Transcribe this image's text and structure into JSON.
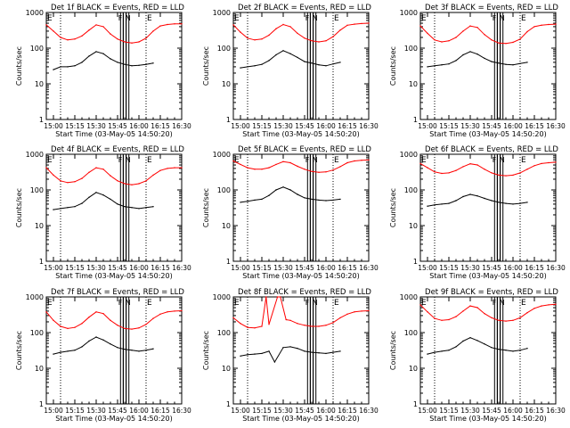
{
  "colors": {
    "events": "#000000",
    "lld": "#ff0000",
    "background": "#ffffff",
    "axes": "#000000"
  },
  "shared": {
    "ylabel": "Counts/sec",
    "xlabel": "Start Time (03-May-05 14:50:20)",
    "x_ticks": [
      "15:00",
      "15:15",
      "15:30",
      "15:45",
      "16:00",
      "16:15",
      "16:30"
    ],
    "y_ticks": [
      "1",
      "10",
      "100",
      "1000"
    ],
    "marker_e": "E",
    "marker_f": "F",
    "marker_n": "N"
  },
  "chart_data": [
    {
      "type": "line",
      "title": "Det 1f BLACK = Events, RED = LLD",
      "xlim": [
        "14:55",
        "16:30"
      ],
      "ylim": [
        1,
        1000
      ],
      "yscale": "log",
      "grid": false,
      "dotted_lines": [
        "15:05",
        "16:05"
      ],
      "flags": [
        "15:48",
        "15:50",
        "15:52"
      ],
      "series": [
        {
          "name": "Events",
          "x": [
            "15:00",
            "15:05",
            "15:10",
            "15:15",
            "15:20",
            "15:25",
            "15:30",
            "15:35",
            "15:40",
            "15:45",
            "15:50",
            "15:55",
            "16:00",
            "16:05",
            "16:10"
          ],
          "y": [
            25,
            30,
            30,
            32,
            40,
            60,
            80,
            70,
            50,
            40,
            35,
            32,
            33,
            35,
            38
          ]
        },
        {
          "name": "LLD",
          "x": [
            "14:55",
            "15:00",
            "15:05",
            "15:10",
            "15:15",
            "15:20",
            "15:25",
            "15:30",
            "15:35",
            "15:40",
            "15:45",
            "15:50",
            "15:55",
            "16:00",
            "16:05",
            "16:10",
            "16:15",
            "16:20",
            "16:25",
            "16:30"
          ],
          "y": [
            450,
            300,
            200,
            170,
            180,
            220,
            320,
            450,
            400,
            250,
            180,
            150,
            140,
            150,
            190,
            300,
            420,
            460,
            480,
            480
          ]
        }
      ]
    },
    {
      "type": "line",
      "title": "Det 2f BLACK = Events, RED = LLD",
      "xlim": [
        "14:55",
        "16:30"
      ],
      "ylim": [
        1,
        1000
      ],
      "yscale": "log",
      "grid": false,
      "dotted_lines": [
        "15:05",
        "16:05"
      ],
      "flags": [
        "15:48",
        "15:50",
        "15:52"
      ],
      "series": [
        {
          "name": "Events",
          "x": [
            "15:00",
            "15:05",
            "15:10",
            "15:15",
            "15:20",
            "15:25",
            "15:30",
            "15:35",
            "15:40",
            "15:45",
            "15:50",
            "15:55",
            "16:00",
            "16:05",
            "16:10"
          ],
          "y": [
            28,
            30,
            32,
            35,
            45,
            65,
            85,
            70,
            55,
            42,
            38,
            34,
            32,
            36,
            40
          ]
        },
        {
          "name": "LLD",
          "x": [
            "14:55",
            "15:00",
            "15:05",
            "15:10",
            "15:15",
            "15:20",
            "15:25",
            "15:30",
            "15:35",
            "15:40",
            "15:45",
            "15:50",
            "15:55",
            "16:00",
            "16:05",
            "16:10",
            "16:15",
            "16:20",
            "16:25",
            "16:30"
          ],
          "y": [
            450,
            280,
            190,
            170,
            180,
            230,
            350,
            460,
            400,
            260,
            190,
            160,
            150,
            160,
            210,
            320,
            440,
            470,
            490,
            500
          ]
        }
      ]
    },
    {
      "type": "line",
      "title": "Det 3f BLACK = Events, RED = LLD",
      "xlim": [
        "14:55",
        "16:30"
      ],
      "ylim": [
        1,
        1000
      ],
      "yscale": "log",
      "grid": false,
      "dotted_lines": [
        "15:05",
        "16:05"
      ],
      "flags": [
        "15:48",
        "15:50",
        "15:52"
      ],
      "series": [
        {
          "name": "Events",
          "x": [
            "15:00",
            "15:05",
            "15:10",
            "15:15",
            "15:20",
            "15:25",
            "15:30",
            "15:35",
            "15:40",
            "15:45",
            "15:50",
            "15:55",
            "16:00",
            "16:05",
            "16:10"
          ],
          "y": [
            30,
            32,
            34,
            36,
            45,
            65,
            80,
            68,
            52,
            42,
            38,
            35,
            34,
            37,
            40
          ]
        },
        {
          "name": "LLD",
          "x": [
            "14:55",
            "15:00",
            "15:05",
            "15:10",
            "15:15",
            "15:20",
            "15:25",
            "15:30",
            "15:35",
            "15:40",
            "15:45",
            "15:50",
            "15:55",
            "16:00",
            "16:05",
            "16:10",
            "16:15",
            "16:20",
            "16:25",
            "16:30"
          ],
          "y": [
            420,
            260,
            170,
            150,
            160,
            200,
            300,
            420,
            380,
            240,
            170,
            140,
            135,
            145,
            180,
            290,
            400,
            440,
            460,
            470
          ]
        }
      ]
    },
    {
      "type": "line",
      "title": "Det 4f BLACK = Events, RED = LLD",
      "xlim": [
        "14:55",
        "16:30"
      ],
      "ylim": [
        1,
        1000
      ],
      "yscale": "log",
      "grid": false,
      "dotted_lines": [
        "15:05",
        "16:05"
      ],
      "flags": [
        "15:48",
        "15:50",
        "15:52"
      ],
      "series": [
        {
          "name": "Events",
          "x": [
            "15:00",
            "15:05",
            "15:10",
            "15:15",
            "15:20",
            "15:25",
            "15:30",
            "15:35",
            "15:40",
            "15:45",
            "15:50",
            "15:55",
            "16:00",
            "16:05",
            "16:10"
          ],
          "y": [
            28,
            30,
            32,
            34,
            42,
            62,
            85,
            72,
            55,
            40,
            34,
            32,
            30,
            32,
            34
          ]
        },
        {
          "name": "LLD",
          "x": [
            "14:55",
            "15:00",
            "15:05",
            "15:10",
            "15:15",
            "15:20",
            "15:25",
            "15:30",
            "15:35",
            "15:40",
            "15:45",
            "15:50",
            "15:55",
            "16:00",
            "16:05",
            "16:10",
            "16:15",
            "16:20",
            "16:25",
            "16:30"
          ],
          "y": [
            420,
            260,
            180,
            160,
            170,
            210,
            310,
            420,
            380,
            250,
            180,
            150,
            140,
            150,
            180,
            260,
            350,
            400,
            420,
            420
          ]
        }
      ]
    },
    {
      "type": "line",
      "title": "Det 5f BLACK = Events, RED = LLD",
      "xlim": [
        "14:55",
        "16:30"
      ],
      "ylim": [
        1,
        1000
      ],
      "yscale": "log",
      "grid": false,
      "dotted_lines": [
        "15:05",
        "16:05"
      ],
      "flags": [
        "15:48",
        "15:50",
        "15:52"
      ],
      "series": [
        {
          "name": "Events",
          "x": [
            "15:00",
            "15:05",
            "15:10",
            "15:15",
            "15:20",
            "15:25",
            "15:30",
            "15:35",
            "15:40",
            "15:45",
            "15:50",
            "15:55",
            "16:00",
            "16:05",
            "16:10"
          ],
          "y": [
            45,
            48,
            52,
            55,
            70,
            100,
            120,
            100,
            75,
            60,
            55,
            52,
            50,
            52,
            55
          ]
        },
        {
          "name": "LLD",
          "x": [
            "14:55",
            "15:00",
            "15:05",
            "15:10",
            "15:15",
            "15:20",
            "15:25",
            "15:30",
            "15:35",
            "15:40",
            "15:45",
            "15:50",
            "15:55",
            "16:00",
            "16:05",
            "16:10",
            "16:15",
            "16:20",
            "16:25",
            "16:30"
          ],
          "y": [
            650,
            520,
            420,
            380,
            380,
            420,
            520,
            620,
            580,
            460,
            380,
            330,
            310,
            320,
            360,
            450,
            580,
            650,
            680,
            690
          ]
        }
      ]
    },
    {
      "type": "line",
      "title": "Det 6f BLACK = Events, RED = LLD",
      "xlim": [
        "14:55",
        "16:30"
      ],
      "ylim": [
        1,
        1000
      ],
      "yscale": "log",
      "grid": false,
      "dotted_lines": [
        "15:05",
        "16:05"
      ],
      "flags": [
        "15:48",
        "15:50",
        "15:52"
      ],
      "series": [
        {
          "name": "Events",
          "x": [
            "15:00",
            "15:05",
            "15:10",
            "15:15",
            "15:20",
            "15:25",
            "15:30",
            "15:35",
            "15:40",
            "15:45",
            "15:50",
            "15:55",
            "16:00",
            "16:05",
            "16:10"
          ],
          "y": [
            35,
            38,
            40,
            42,
            50,
            65,
            75,
            68,
            58,
            50,
            45,
            42,
            40,
            42,
            45
          ]
        },
        {
          "name": "LLD",
          "x": [
            "14:55",
            "15:00",
            "15:05",
            "15:10",
            "15:15",
            "15:20",
            "15:25",
            "15:30",
            "15:35",
            "15:40",
            "15:45",
            "15:50",
            "15:55",
            "16:00",
            "16:05",
            "16:10",
            "16:15",
            "16:20",
            "16:25",
            "16:30"
          ],
          "y": [
            550,
            420,
            320,
            290,
            300,
            350,
            450,
            540,
            500,
            380,
            300,
            260,
            250,
            260,
            300,
            380,
            480,
            550,
            580,
            600
          ]
        }
      ]
    },
    {
      "type": "line",
      "title": "Det 7f BLACK = Events, RED = LLD",
      "xlim": [
        "14:55",
        "16:30"
      ],
      "ylim": [
        1,
        1000
      ],
      "yscale": "log",
      "grid": false,
      "dotted_lines": [
        "15:05",
        "16:05"
      ],
      "flags": [
        "15:48",
        "15:50",
        "15:52"
      ],
      "series": [
        {
          "name": "Events",
          "x": [
            "15:00",
            "15:05",
            "15:10",
            "15:15",
            "15:20",
            "15:25",
            "15:30",
            "15:35",
            "15:40",
            "15:45",
            "15:50",
            "15:55",
            "16:00",
            "16:05",
            "16:10"
          ],
          "y": [
            25,
            28,
            30,
            32,
            40,
            58,
            75,
            62,
            48,
            38,
            34,
            32,
            30,
            32,
            35
          ]
        },
        {
          "name": "LLD",
          "x": [
            "14:55",
            "15:00",
            "15:05",
            "15:10",
            "15:15",
            "15:20",
            "15:25",
            "15:30",
            "15:35",
            "15:40",
            "15:45",
            "15:50",
            "15:55",
            "16:00",
            "16:05",
            "16:10",
            "16:15",
            "16:20",
            "16:25",
            "16:30"
          ],
          "y": [
            380,
            220,
            150,
            130,
            140,
            180,
            270,
            380,
            340,
            220,
            160,
            130,
            125,
            135,
            170,
            250,
            330,
            380,
            400,
            410
          ]
        }
      ]
    },
    {
      "type": "line",
      "title": "Det 8f BLACK = Events, RED = LLD",
      "xlim": [
        "14:55",
        "16:30"
      ],
      "ylim": [
        1,
        1000
      ],
      "yscale": "log",
      "grid": false,
      "dotted_lines": [
        "15:05",
        "16:05"
      ],
      "flags": [
        "15:48",
        "15:50",
        "15:52"
      ],
      "series": [
        {
          "name": "Events",
          "x": [
            "15:00",
            "15:05",
            "15:10",
            "15:15",
            "15:20",
            "15:24",
            "15:30",
            "15:35",
            "15:40",
            "15:45",
            "15:50",
            "15:55",
            "16:00",
            "16:05",
            "16:10"
          ],
          "y": [
            22,
            24,
            25,
            26,
            30,
            15,
            38,
            40,
            36,
            30,
            28,
            27,
            26,
            28,
            30
          ]
        },
        {
          "name": "LLD",
          "x": [
            "14:55",
            "15:00",
            "15:05",
            "15:10",
            "15:15",
            "15:18",
            "15:20",
            "15:26",
            "15:28",
            "15:32",
            "15:35",
            "15:40",
            "15:45",
            "15:50",
            "15:55",
            "16:00",
            "16:05",
            "16:10",
            "16:15",
            "16:20",
            "16:25",
            "16:30"
          ],
          "y": [
            260,
            180,
            140,
            135,
            150,
            1000,
            170,
            1000,
            1000,
            230,
            220,
            180,
            160,
            150,
            150,
            160,
            190,
            260,
            330,
            380,
            400,
            410
          ]
        }
      ]
    },
    {
      "type": "line",
      "title": "Det 9f BLACK = Events, RED = LLD",
      "xlim": [
        "14:55",
        "16:30"
      ],
      "ylim": [
        1,
        1000
      ],
      "yscale": "log",
      "grid": false,
      "dotted_lines": [
        "15:05",
        "16:05"
      ],
      "flags": [
        "15:48",
        "15:50",
        "15:52"
      ],
      "series": [
        {
          "name": "Events",
          "x": [
            "15:00",
            "15:05",
            "15:10",
            "15:15",
            "15:20",
            "15:25",
            "15:30",
            "15:35",
            "15:40",
            "15:45",
            "15:50",
            "15:55",
            "16:00",
            "16:05",
            "16:10"
          ],
          "y": [
            25,
            28,
            30,
            32,
            40,
            58,
            72,
            60,
            48,
            38,
            34,
            32,
            30,
            32,
            36
          ]
        },
        {
          "name": "LLD",
          "x": [
            "14:55",
            "15:00",
            "15:05",
            "15:10",
            "15:15",
            "15:20",
            "15:25",
            "15:30",
            "15:35",
            "15:40",
            "15:45",
            "15:50",
            "15:55",
            "16:00",
            "16:05",
            "16:10",
            "16:15",
            "16:20",
            "16:25",
            "16:30"
          ],
          "y": [
            600,
            380,
            250,
            220,
            230,
            280,
            400,
            560,
            500,
            340,
            260,
            220,
            210,
            220,
            260,
            360,
            480,
            560,
            600,
            620
          ]
        }
      ]
    }
  ]
}
